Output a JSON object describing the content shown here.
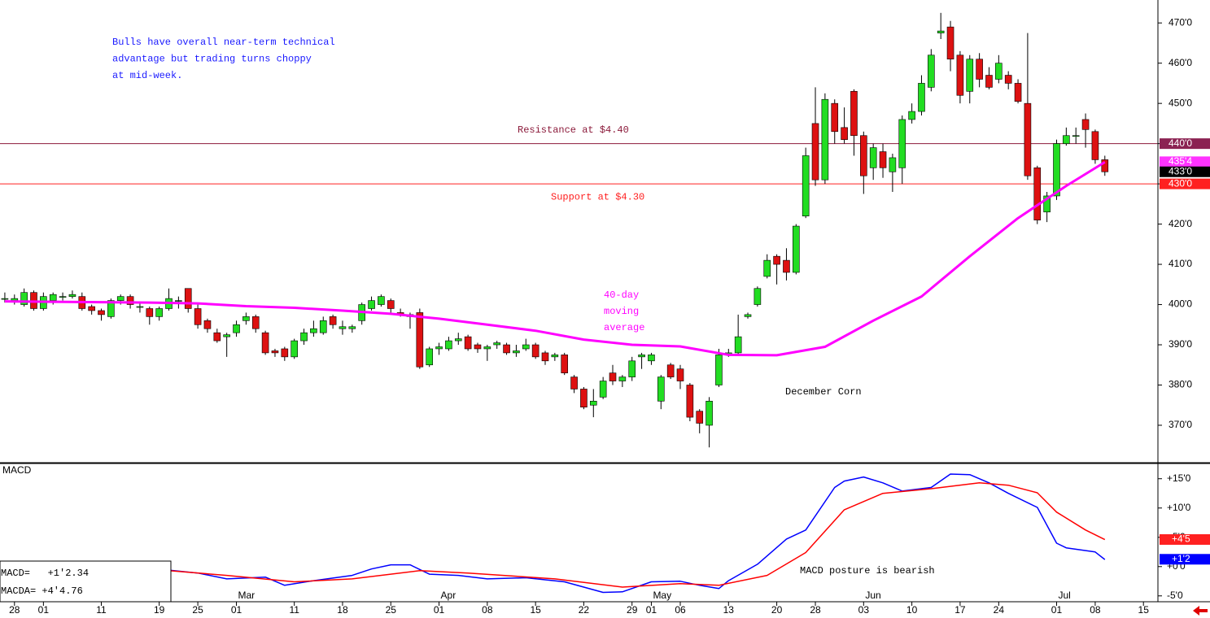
{
  "chart_data": [
    {
      "type": "candlestick",
      "title": "December Corn",
      "note": [
        "Bulls have overall near-term technical",
        "advantage but trading turns choppy",
        "at mid-week."
      ],
      "xlim": [
        -0.5,
        119.5
      ],
      "ylim": [
        360.9,
        475.7
      ],
      "yticks": [
        {
          "value": 370,
          "label": "370'0"
        },
        {
          "value": 380,
          "label": "380'0"
        },
        {
          "value": 390,
          "label": "390'0"
        },
        {
          "value": 400,
          "label": "400'0"
        },
        {
          "value": 410,
          "label": "410'0"
        },
        {
          "value": 420,
          "label": "420'0"
        },
        {
          "value": 430,
          "label": "430'0"
        },
        {
          "value": 440,
          "label": "440'0"
        },
        {
          "value": 450,
          "label": "450'0"
        },
        {
          "value": 460,
          "label": "460'0"
        },
        {
          "value": 470,
          "label": "470'0"
        }
      ],
      "up_color": "#22dd22",
      "down_color": "#dd1111",
      "x": [
        0,
        1,
        2,
        3,
        4,
        5,
        6,
        7,
        8,
        9,
        10,
        11,
        12,
        13,
        14,
        15,
        16,
        17,
        18,
        19,
        20,
        21,
        22,
        23,
        24,
        25,
        26,
        27,
        28,
        29,
        30,
        31,
        32,
        33,
        34,
        35,
        36,
        37,
        38,
        39,
        40,
        41,
        42,
        43,
        44,
        45,
        46,
        47,
        48,
        49,
        50,
        51,
        52,
        53,
        54,
        55,
        56,
        57,
        58,
        59,
        60,
        61,
        62,
        63,
        64,
        65,
        66,
        67,
        68,
        69,
        70,
        71,
        72,
        73,
        74,
        75,
        76,
        77,
        78,
        79,
        80,
        81,
        82,
        83,
        84,
        85,
        86,
        87,
        88,
        89,
        90,
        91,
        92,
        93,
        94,
        95,
        96,
        97,
        98,
        99,
        100,
        101,
        102,
        103,
        104,
        105,
        106,
        107,
        108,
        109,
        110,
        111,
        112,
        113,
        114
      ],
      "open": [
        401.5,
        401,
        400,
        403,
        399,
        401,
        402,
        402,
        402,
        399.5,
        398.5,
        397,
        401,
        402,
        399.5,
        399,
        397,
        399,
        401,
        404,
        399,
        396,
        393,
        392,
        393,
        396,
        397,
        393,
        388.5,
        389,
        387,
        391,
        393,
        393,
        397,
        394,
        394,
        396,
        399,
        400,
        401,
        398,
        397.5,
        398,
        385,
        389,
        389,
        391,
        392,
        390,
        389,
        390,
        390,
        388,
        389,
        390,
        388,
        387,
        387.5,
        382,
        379,
        375,
        377,
        383,
        381,
        382,
        387,
        386,
        376,
        385,
        384,
        380,
        373.5,
        370,
        380,
        387.5,
        388,
        397,
        400,
        407,
        412,
        411,
        408,
        422,
        445,
        431,
        450,
        444,
        453,
        442,
        434,
        438,
        433,
        434,
        446,
        448,
        454,
        467.5,
        469,
        462,
        453,
        461,
        457,
        456,
        457,
        455,
        450,
        434,
        423,
        427,
        440,
        442,
        446,
        443,
        436
      ],
      "high": [
        403,
        402.5,
        404,
        403.5,
        403,
        403,
        403,
        403.5,
        403,
        400,
        399,
        401.5,
        402.5,
        402.5,
        400.5,
        399.5,
        399.5,
        404,
        402,
        404,
        400,
        396.5,
        394,
        393,
        396,
        398,
        397.5,
        393.5,
        389,
        389.5,
        391.5,
        394,
        396,
        397,
        397.5,
        396,
        395,
        400.5,
        402,
        402.5,
        401.5,
        399,
        398,
        399,
        389.5,
        390.5,
        392,
        393,
        392.5,
        390.5,
        390,
        391,
        390.5,
        390,
        391.5,
        390.5,
        388.5,
        388,
        388,
        382.5,
        379.5,
        379,
        382,
        385,
        382.5,
        387,
        388,
        388,
        382.5,
        385.5,
        385,
        380.5,
        374,
        377,
        389,
        389,
        397.5,
        398,
        404.5,
        412.5,
        412.5,
        414,
        420,
        439,
        454,
        452.5,
        451,
        449,
        453.5,
        443,
        440,
        440,
        437.5,
        447,
        450,
        457,
        463.5,
        472.5,
        470.5,
        463,
        462,
        462.5,
        459,
        462,
        458,
        456,
        467.5,
        434.5,
        428,
        441,
        444,
        444,
        447.5,
        443.5,
        437
      ],
      "low": [
        400.5,
        400,
        399.5,
        398.5,
        398.5,
        400,
        401,
        401.5,
        398.5,
        397.5,
        396,
        396.5,
        400,
        399,
        398,
        395,
        396,
        398.5,
        399,
        398,
        394,
        393,
        390.5,
        387,
        392,
        395,
        393,
        387.5,
        387,
        386,
        386.5,
        390,
        392,
        392.5,
        394,
        392.5,
        393,
        395,
        398.5,
        399.5,
        398,
        397,
        394,
        384,
        384.5,
        387.5,
        388.5,
        390,
        388.5,
        388,
        386,
        389,
        387.5,
        387,
        388.5,
        386.5,
        385,
        386,
        382.5,
        378,
        374,
        372,
        376.5,
        380,
        379.5,
        381,
        384,
        385,
        374,
        381.5,
        379,
        371,
        368,
        364.5,
        379.5,
        387,
        387.5,
        396.5,
        399.5,
        406.5,
        405,
        406,
        407.5,
        421.5,
        429.5,
        430,
        440,
        440,
        437,
        427.5,
        431,
        431.5,
        428,
        430,
        445,
        447,
        453,
        466,
        458,
        450,
        450,
        454,
        453.5,
        455,
        453.5,
        450,
        431,
        420,
        420.5,
        426,
        439.5,
        440,
        439,
        435,
        432
      ],
      "close": [
        401.5,
        401.5,
        403,
        399,
        402,
        402.5,
        402,
        402.5,
        399,
        398.5,
        397.5,
        401,
        402,
        400,
        399.5,
        397,
        399,
        401.5,
        401,
        399,
        395,
        394,
        391,
        392.5,
        395,
        397,
        394,
        388,
        388,
        387,
        391,
        393,
        394,
        396,
        395,
        394.5,
        394.5,
        400,
        401,
        402,
        399,
        397.5,
        397,
        384.5,
        389,
        389.5,
        391,
        391.5,
        389,
        389,
        389.5,
        390.5,
        388,
        388.5,
        390,
        387,
        386,
        387.5,
        383,
        379,
        374.5,
        376,
        381,
        381,
        382,
        386,
        387.5,
        387.5,
        382,
        382,
        381,
        372,
        370.5,
        376,
        387.5,
        388,
        392,
        397.5,
        404,
        411,
        410,
        408,
        419.5,
        437,
        431,
        451,
        443,
        441,
        442,
        432,
        439,
        434,
        436.5,
        446,
        448,
        455,
        462,
        468,
        461,
        452,
        461,
        456,
        454,
        460,
        455,
        450.5,
        432,
        421,
        427,
        440,
        442,
        442,
        443.5,
        436,
        433
      ],
      "ma": {
        "label": [
          "40-day",
          "moving",
          "average"
        ],
        "color": "#ff00ff",
        "x": [
          0,
          5,
          10,
          15,
          20,
          25,
          30,
          35,
          40,
          45,
          50,
          55,
          60,
          65,
          70,
          75,
          80,
          85,
          90,
          95,
          100,
          105,
          110,
          114
        ],
        "values": [
          400.8,
          400.7,
          400.6,
          400.5,
          400.3,
          399.6,
          399.2,
          398.5,
          397.7,
          396.5,
          395,
          393.5,
          391.3,
          390,
          389.6,
          387.5,
          387.4,
          389.5,
          396,
          402,
          412,
          421.5,
          429.5,
          435.4
        ]
      },
      "hlines": [
        {
          "value": 440,
          "label": "Resistance at $4.40",
          "color": "#8b1a3a"
        },
        {
          "value": 430,
          "label": "Support at $4.30",
          "color": "#ff2020"
        }
      ],
      "price_tags": [
        {
          "value": 440,
          "label": "440'0",
          "color": "#8b2252"
        },
        {
          "value": 435.5,
          "label": "435'4",
          "color": "#ff33ff"
        },
        {
          "value": 433,
          "label": "433'0",
          "color": "#000000"
        },
        {
          "value": 430,
          "label": "430'0",
          "color": "#ff2020"
        }
      ]
    },
    {
      "type": "line",
      "title": "MACD",
      "annotation": "MACD posture is bearish",
      "readouts": [
        "MACD=   +1'2.34",
        "MACDA= +4'4.76"
      ],
      "xlim": [
        -0.5,
        119.5
      ],
      "ylim": [
        -6,
        17.6
      ],
      "yticks": [
        {
          "value": -5,
          "label": "-5'0"
        },
        {
          "value": 0,
          "label": "+0'0"
        },
        {
          "value": 5,
          "label": "+5'0"
        },
        {
          "value": 10,
          "label": "+10'0"
        },
        {
          "value": 15,
          "label": "+15'0"
        }
      ],
      "xticks": [
        {
          "value": 1,
          "label": "28"
        },
        {
          "value": 4,
          "label": "01"
        },
        {
          "value": 10,
          "label": "11"
        },
        {
          "value": 16,
          "label": "19"
        },
        {
          "value": 20,
          "label": "25"
        },
        {
          "value": 24,
          "label": "01"
        },
        {
          "value": 30,
          "label": "11"
        },
        {
          "value": 35,
          "label": "18"
        },
        {
          "value": 40,
          "label": "25"
        },
        {
          "value": 45,
          "label": "01"
        },
        {
          "value": 50,
          "label": "08"
        },
        {
          "value": 55,
          "label": "15"
        },
        {
          "value": 60,
          "label": "22"
        },
        {
          "value": 65,
          "label": "29"
        },
        {
          "value": 67,
          "label": "01"
        },
        {
          "value": 70,
          "label": "06"
        },
        {
          "value": 75,
          "label": "13"
        },
        {
          "value": 80,
          "label": "20"
        },
        {
          "value": 84,
          "label": "28"
        },
        {
          "value": 89,
          "label": "03"
        },
        {
          "value": 94,
          "label": "10"
        },
        {
          "value": 99,
          "label": "17"
        },
        {
          "value": 103,
          "label": "24"
        },
        {
          "value": 109,
          "label": "01"
        },
        {
          "value": 113,
          "label": "08"
        },
        {
          "value": 118,
          "label": "15"
        }
      ],
      "months": [
        {
          "value": 24,
          "label": "Mar"
        },
        {
          "value": 45,
          "label": "Apr"
        },
        {
          "value": 67,
          "label": "May"
        },
        {
          "value": 89,
          "label": "Jun"
        },
        {
          "value": 109,
          "label": "Jul"
        }
      ],
      "series": [
        {
          "color": "#0000ff",
          "x": [
            17,
            20,
            23,
            27,
            29,
            32,
            36,
            38,
            40,
            42,
            44,
            47,
            50,
            54,
            58,
            62,
            64,
            67,
            70,
            72,
            74,
            75,
            78,
            81,
            83,
            86,
            87,
            89,
            91,
            93,
            96,
            98,
            100,
            102,
            104,
            107,
            109,
            110,
            113,
            114
          ],
          "values": [
            -0.6,
            -1.1,
            -2.1,
            -1.8,
            -3.2,
            -2.4,
            -1.5,
            -0.4,
            0.3,
            0.3,
            -1.3,
            -1.5,
            -2.1,
            -1.9,
            -2.6,
            -4.4,
            -4.3,
            -2.6,
            -2.5,
            -3.2,
            -3.75,
            -2.4,
            0.4,
            4.7,
            6.25,
            13.5,
            14.6,
            15.3,
            14.3,
            12.9,
            13.5,
            15.8,
            15.7,
            14.3,
            12.5,
            10.1,
            4,
            3.2,
            2.5,
            1.2
          ]
        },
        {
          "color": "#ff0000",
          "x": [
            17,
            23,
            30,
            36,
            43,
            48,
            57,
            64,
            70,
            74,
            79,
            83,
            87,
            91,
            96,
            101,
            104,
            107,
            109,
            112,
            114
          ],
          "values": [
            -0.7,
            -1.5,
            -2.6,
            -2.1,
            -0.7,
            -1.1,
            -2.1,
            -3.5,
            -2.9,
            -3.2,
            -1.5,
            2.4,
            9.7,
            12.5,
            13.3,
            14.3,
            13.9,
            12.6,
            9.3,
            6.25,
            4.6
          ]
        }
      ],
      "tags": [
        {
          "value": 4.625,
          "label": "+4'5",
          "color": "#ff2020"
        },
        {
          "value": 1.25,
          "label": "+1'2",
          "color": "#0000ff"
        }
      ]
    }
  ]
}
